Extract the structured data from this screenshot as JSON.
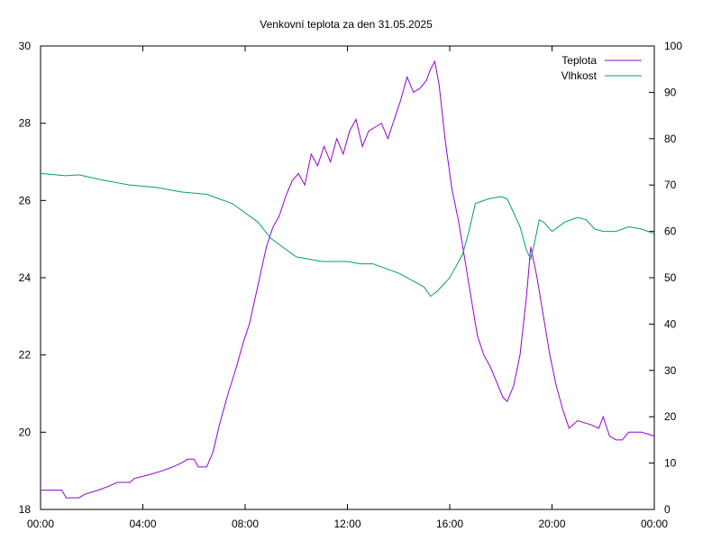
{
  "chart_data": {
    "type": "line",
    "title": "Venkovní teplota za den 31.05.2025",
    "xlabel": "",
    "ylabel": "",
    "y2label": "",
    "x_ticks": [
      "00:00",
      "04:00",
      "08:00",
      "12:00",
      "16:00",
      "20:00",
      "00:00"
    ],
    "xlim_hours": [
      0,
      24
    ],
    "ylim": [
      18,
      30
    ],
    "y_ticks": [
      "18",
      "20",
      "22",
      "24",
      "26",
      "28",
      "30"
    ],
    "y2lim": [
      0,
      100
    ],
    "y2_ticks": [
      "0",
      "10",
      "20",
      "30",
      "40",
      "50",
      "60",
      "70",
      "80",
      "90",
      "100"
    ],
    "grid": false,
    "legend_position": "top-right",
    "series": [
      {
        "name": "Teplota",
        "axis": "left",
        "color": "#9400d3",
        "points": [
          [
            "00:00",
            18.5
          ],
          [
            "00:50",
            18.5
          ],
          [
            "01:00",
            18.3
          ],
          [
            "01:30",
            18.3
          ],
          [
            "01:45",
            18.4
          ],
          [
            "02:15",
            18.5
          ],
          [
            "02:40",
            18.6
          ],
          [
            "03:00",
            18.7
          ],
          [
            "03:30",
            18.7
          ],
          [
            "03:40",
            18.8
          ],
          [
            "04:15",
            18.9
          ],
          [
            "04:45",
            19.0
          ],
          [
            "05:10",
            19.1
          ],
          [
            "05:30",
            19.2
          ],
          [
            "05:45",
            19.3
          ],
          [
            "06:00",
            19.3
          ],
          [
            "06:10",
            19.1
          ],
          [
            "06:30",
            19.1
          ],
          [
            "06:45",
            19.5
          ],
          [
            "07:00",
            20.2
          ],
          [
            "07:20",
            21.0
          ],
          [
            "07:40",
            21.7
          ],
          [
            "07:55",
            22.3
          ],
          [
            "08:10",
            22.8
          ],
          [
            "08:30",
            23.8
          ],
          [
            "08:50",
            24.8
          ],
          [
            "09:05",
            25.3
          ],
          [
            "09:20",
            25.6
          ],
          [
            "09:35",
            26.1
          ],
          [
            "09:50",
            26.5
          ],
          [
            "10:05",
            26.7
          ],
          [
            "10:20",
            26.4
          ],
          [
            "10:35",
            27.2
          ],
          [
            "10:50",
            26.9
          ],
          [
            "11:05",
            27.4
          ],
          [
            "11:20",
            27.0
          ],
          [
            "11:35",
            27.6
          ],
          [
            "11:50",
            27.2
          ],
          [
            "12:05",
            27.8
          ],
          [
            "12:20",
            28.1
          ],
          [
            "12:35",
            27.4
          ],
          [
            "12:50",
            27.8
          ],
          [
            "13:05",
            27.9
          ],
          [
            "13:20",
            28.0
          ],
          [
            "13:35",
            27.6
          ],
          [
            "13:50",
            28.1
          ],
          [
            "14:05",
            28.6
          ],
          [
            "14:20",
            29.2
          ],
          [
            "14:35",
            28.8
          ],
          [
            "14:50",
            28.9
          ],
          [
            "15:05",
            29.1
          ],
          [
            "15:15",
            29.4
          ],
          [
            "15:25",
            29.6
          ],
          [
            "15:35",
            29.0
          ],
          [
            "15:50",
            27.5
          ],
          [
            "16:05",
            26.3
          ],
          [
            "16:20",
            25.5
          ],
          [
            "16:35",
            24.5
          ],
          [
            "16:50",
            23.5
          ],
          [
            "17:05",
            22.5
          ],
          [
            "17:20",
            22.0
          ],
          [
            "17:35",
            21.7
          ],
          [
            "17:50",
            21.3
          ],
          [
            "18:05",
            20.9
          ],
          [
            "18:15",
            20.8
          ],
          [
            "18:30",
            21.2
          ],
          [
            "18:45",
            22.0
          ],
          [
            "19:00",
            23.5
          ],
          [
            "19:10",
            24.8
          ],
          [
            "19:25",
            24.0
          ],
          [
            "19:40",
            23.0
          ],
          [
            "19:55",
            22.0
          ],
          [
            "20:10",
            21.2
          ],
          [
            "20:25",
            20.6
          ],
          [
            "20:40",
            20.1
          ],
          [
            "21:00",
            20.3
          ],
          [
            "21:30",
            20.2
          ],
          [
            "21:50",
            20.1
          ],
          [
            "22:00",
            20.4
          ],
          [
            "22:15",
            19.9
          ],
          [
            "22:30",
            19.8
          ],
          [
            "22:45",
            19.8
          ],
          [
            "23:00",
            20.0
          ],
          [
            "23:30",
            20.0
          ],
          [
            "24:00",
            19.9
          ]
        ]
      },
      {
        "name": "Vlhkost",
        "axis": "right",
        "color": "#009e73",
        "points": [
          [
            "00:00",
            72.5
          ],
          [
            "01:00",
            72.0
          ],
          [
            "01:30",
            72.2
          ],
          [
            "02:30",
            71.0
          ],
          [
            "03:30",
            70.0
          ],
          [
            "04:30",
            69.5
          ],
          [
            "05:30",
            68.5
          ],
          [
            "06:30",
            68.0
          ],
          [
            "07:00",
            67.0
          ],
          [
            "07:30",
            66.0
          ],
          [
            "08:00",
            64.0
          ],
          [
            "08:30",
            62.0
          ],
          [
            "09:00",
            58.5
          ],
          [
            "09:30",
            56.5
          ],
          [
            "10:00",
            54.5
          ],
          [
            "10:30",
            54.0
          ],
          [
            "11:00",
            53.5
          ],
          [
            "11:30",
            53.5
          ],
          [
            "12:00",
            53.5
          ],
          [
            "12:30",
            53.0
          ],
          [
            "13:00",
            53.0
          ],
          [
            "13:30",
            52.0
          ],
          [
            "14:00",
            51.0
          ],
          [
            "14:30",
            49.5
          ],
          [
            "15:00",
            48.0
          ],
          [
            "15:15",
            46.0
          ],
          [
            "15:30",
            47.0
          ],
          [
            "16:00",
            50.0
          ],
          [
            "16:30",
            55.0
          ],
          [
            "16:45",
            60.0
          ],
          [
            "17:00",
            66.0
          ],
          [
            "17:30",
            67.0
          ],
          [
            "18:00",
            67.5
          ],
          [
            "18:15",
            67.0
          ],
          [
            "18:30",
            64.0
          ],
          [
            "18:45",
            61.0
          ],
          [
            "19:00",
            56.0
          ],
          [
            "19:10",
            54.0
          ],
          [
            "19:20",
            58.0
          ],
          [
            "19:30",
            62.5
          ],
          [
            "19:40",
            62.0
          ],
          [
            "20:00",
            60.0
          ],
          [
            "20:30",
            62.0
          ],
          [
            "21:00",
            63.0
          ],
          [
            "21:20",
            62.5
          ],
          [
            "21:40",
            60.5
          ],
          [
            "22:00",
            60.0
          ],
          [
            "22:30",
            60.0
          ],
          [
            "23:00",
            61.0
          ],
          [
            "23:30",
            60.5
          ],
          [
            "24:00",
            59.5
          ]
        ]
      }
    ]
  }
}
